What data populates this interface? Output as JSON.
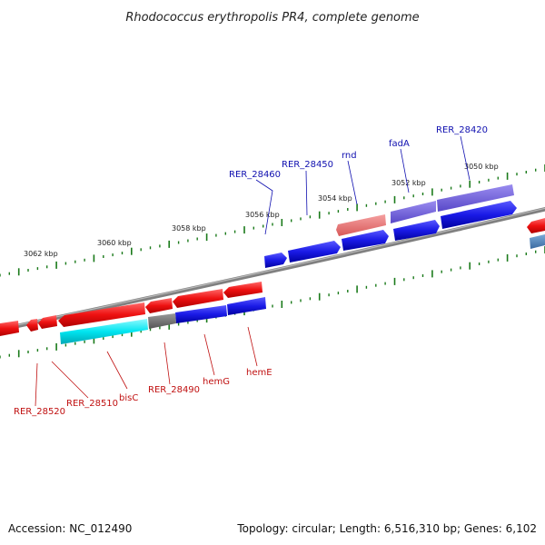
{
  "title": "Rhodococcus erythropolis PR4, complete genome",
  "accession": "Accession: NC_012490",
  "summary": "Topology: circular; Length: 6,516,310 bp; Genes: 6,102",
  "scale_labels": [
    "3062 kbp",
    "3060 kbp",
    "3058 kbp",
    "3056 kbp",
    "3054 kbp",
    "3052 kbp",
    "3050 kbp"
  ],
  "upper_gene_labels": [
    "RER_28460",
    "RER_28450",
    "rnd",
    "fadA",
    "RER_28420"
  ],
  "lower_gene_labels": [
    "RER_28520",
    "RER_28510",
    "bisC",
    "RER_28490",
    "hemG",
    "hemE"
  ],
  "colors": {
    "forward_gene": "#1a1ae6",
    "reverse_gene": "#ee1111",
    "rna_gene": "#00e5f0",
    "pseudo_gene": "#666666",
    "faded_forward": "#6b5ad6",
    "faded_reverse": "#e87a7a",
    "backbone": "#808080",
    "ticks": "#1a7a1a"
  }
}
